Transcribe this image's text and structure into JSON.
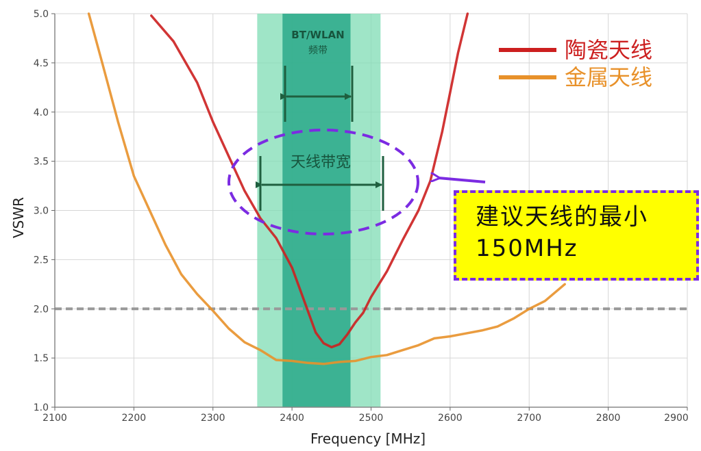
{
  "chart_data": {
    "type": "line",
    "xlabel": "Frequency [MHz]",
    "ylabel": "VSWR",
    "xlim": [
      2100,
      2900
    ],
    "ylim": [
      1.0,
      5.0
    ],
    "x_ticks": [
      "2100",
      "2200",
      "2300",
      "2400",
      "2500",
      "2600",
      "2700",
      "2800",
      "2900"
    ],
    "y_ticks": [
      "1.0",
      "1.5",
      "2.0",
      "2.5",
      "3.0",
      "3.5",
      "4.0",
      "4.5",
      "5.0"
    ],
    "grid": true,
    "legend_position": "top-right",
    "reference_line": {
      "y": 2.0,
      "style": "dashed",
      "color": "#999999"
    },
    "series": [
      {
        "name": "陶瓷天线",
        "color": "#cc1f1f",
        "points": [
          [
            2222,
            4.98
          ],
          [
            2250,
            4.72
          ],
          [
            2280,
            4.3
          ],
          [
            2300,
            3.9
          ],
          [
            2320,
            3.55
          ],
          [
            2340,
            3.2
          ],
          [
            2360,
            2.92
          ],
          [
            2380,
            2.72
          ],
          [
            2400,
            2.42
          ],
          [
            2410,
            2.2
          ],
          [
            2420,
            1.98
          ],
          [
            2430,
            1.76
          ],
          [
            2440,
            1.65
          ],
          [
            2450,
            1.61
          ],
          [
            2460,
            1.64
          ],
          [
            2470,
            1.74
          ],
          [
            2480,
            1.86
          ],
          [
            2490,
            1.96
          ],
          [
            2500,
            2.12
          ],
          [
            2520,
            2.38
          ],
          [
            2540,
            2.7
          ],
          [
            2560,
            3.0
          ],
          [
            2575,
            3.3
          ],
          [
            2590,
            3.8
          ],
          [
            2600,
            4.2
          ],
          [
            2610,
            4.6
          ],
          [
            2622,
            5.0
          ]
        ]
      },
      {
        "name": "金属天线",
        "color": "#e8912a",
        "points": [
          [
            2143,
            5.0
          ],
          [
            2160,
            4.5
          ],
          [
            2180,
            3.9
          ],
          [
            2200,
            3.35
          ],
          [
            2220,
            3.0
          ],
          [
            2240,
            2.65
          ],
          [
            2260,
            2.35
          ],
          [
            2280,
            2.15
          ],
          [
            2300,
            1.98
          ],
          [
            2320,
            1.8
          ],
          [
            2340,
            1.66
          ],
          [
            2360,
            1.58
          ],
          [
            2380,
            1.48
          ],
          [
            2400,
            1.47
          ],
          [
            2420,
            1.45
          ],
          [
            2440,
            1.44
          ],
          [
            2460,
            1.46
          ],
          [
            2480,
            1.47
          ],
          [
            2500,
            1.51
          ],
          [
            2520,
            1.53
          ],
          [
            2540,
            1.58
          ],
          [
            2560,
            1.63
          ],
          [
            2580,
            1.7
          ],
          [
            2600,
            1.72
          ],
          [
            2620,
            1.75
          ],
          [
            2640,
            1.78
          ],
          [
            2660,
            1.82
          ],
          [
            2680,
            1.9
          ],
          [
            2700,
            2.0
          ],
          [
            2720,
            2.08
          ],
          [
            2745,
            2.25
          ]
        ]
      }
    ],
    "bands": [
      {
        "label_line1": "BT/WLAN",
        "label_line2": "频带",
        "x_range": [
          2388,
          2474
        ],
        "color": "#2aa98a"
      },
      {
        "label": "天线带宽",
        "x_range": [
          2356,
          2512
        ],
        "color": "#7fdcb4"
      }
    ],
    "annotation": {
      "lines": [
        "建议天线的最小",
        "150MHz"
      ],
      "background": "#ffff00",
      "border_color": "#7b2be2"
    }
  }
}
